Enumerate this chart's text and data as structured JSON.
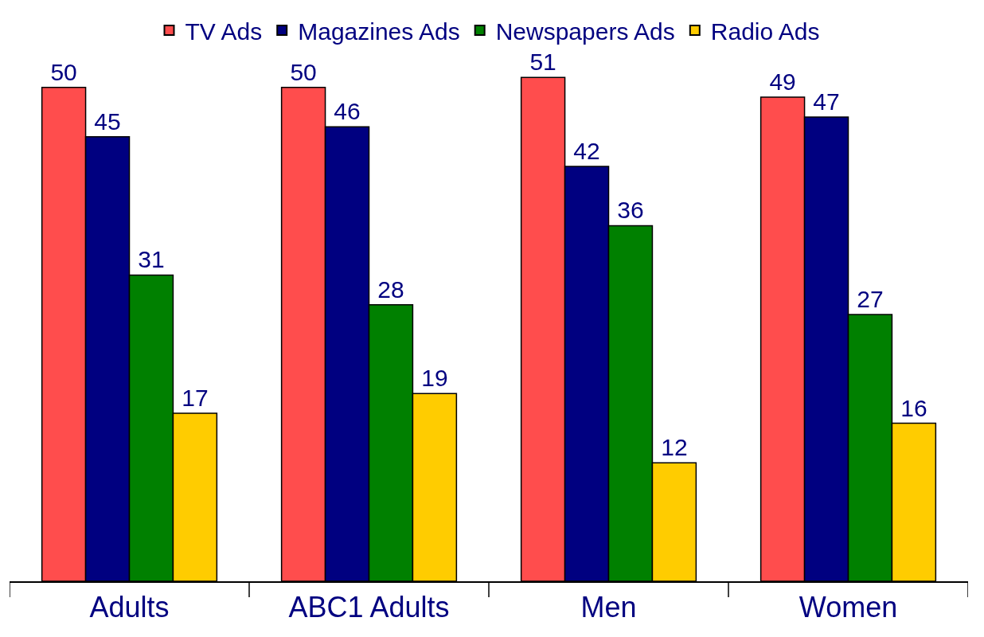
{
  "chart_data": {
    "type": "bar",
    "categories": [
      "Adults",
      "ABC1 Adults",
      "Men",
      "Women"
    ],
    "series": [
      {
        "name": "TV Ads",
        "color": "#ff4d4d",
        "values": [
          50,
          50,
          51,
          49
        ]
      },
      {
        "name": "Magazines Ads",
        "color": "#000080",
        "values": [
          45,
          46,
          42,
          47
        ]
      },
      {
        "name": "Newspapers Ads",
        "color": "#008000",
        "values": [
          31,
          28,
          36,
          27
        ]
      },
      {
        "name": "Radio Ads",
        "color": "#ffcc00",
        "values": [
          17,
          19,
          12,
          16
        ]
      }
    ],
    "data_labels": true,
    "legend": "top",
    "tick_labels": "x"
  }
}
